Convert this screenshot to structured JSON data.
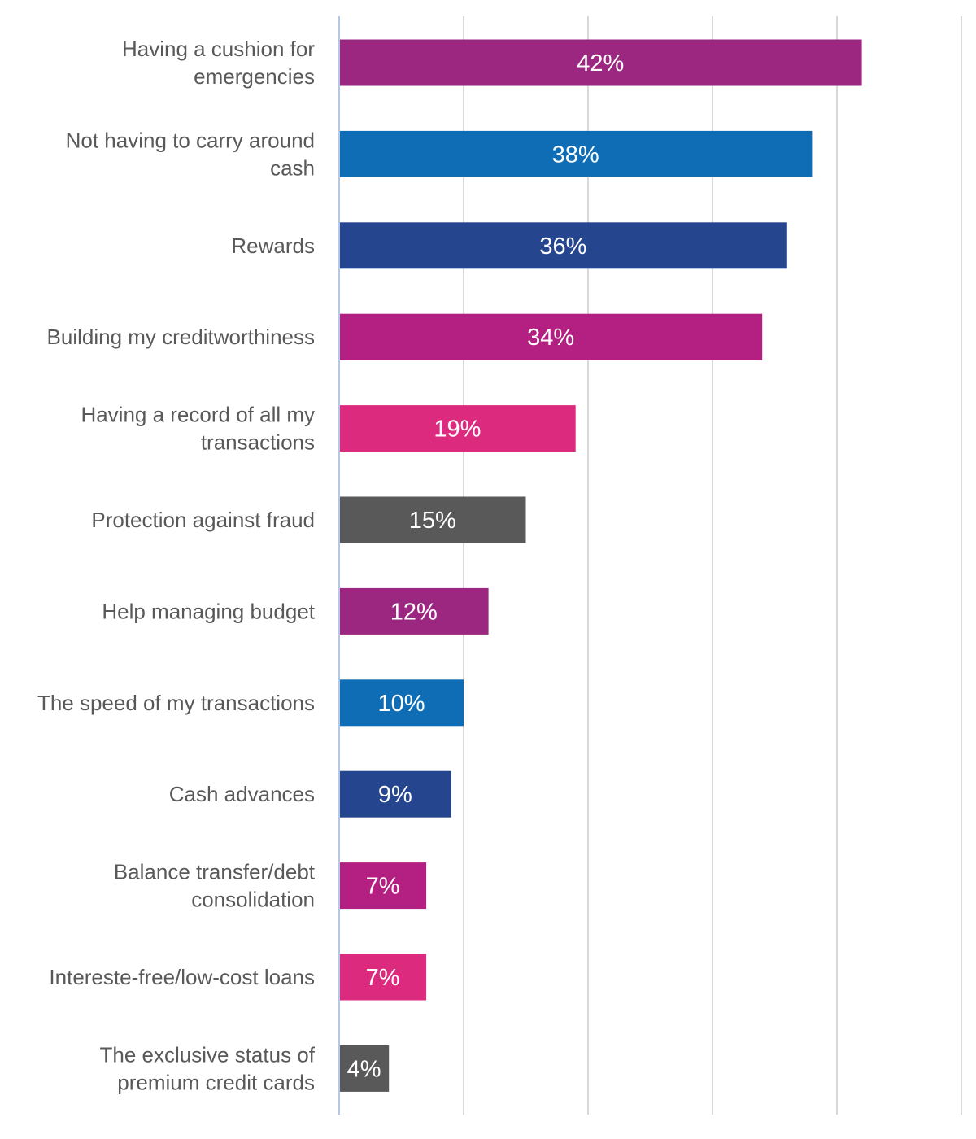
{
  "chart_data": {
    "type": "bar",
    "orientation": "horizontal",
    "categories": [
      [
        "Having a cushion for",
        "emergencies"
      ],
      [
        "Not having to carry around",
        "cash"
      ],
      [
        "Rewards"
      ],
      [
        "Building my creditworthiness"
      ],
      [
        "Having a record of all my",
        "transactions"
      ],
      [
        "Protection against fraud"
      ],
      [
        "Help managing budget"
      ],
      [
        "The speed of my transactions"
      ],
      [
        "Cash advances"
      ],
      [
        "Balance transfer/debt",
        "consolidation"
      ],
      [
        "Intereste-free/low-cost loans"
      ],
      [
        "The exclusive status of",
        "premium credit cards"
      ]
    ],
    "values": [
      42,
      38,
      36,
      34,
      19,
      15,
      12,
      10,
      9,
      7,
      7,
      4
    ],
    "value_labels": [
      "42%",
      "38%",
      "36%",
      "34%",
      "19%",
      "15%",
      "12%",
      "10%",
      "9%",
      "7%",
      "7%",
      "4%"
    ],
    "bar_colors": [
      "#9b2780",
      "#0f6db5",
      "#25468f",
      "#b42081",
      "#dc2b7f",
      "#595959",
      "#9b2780",
      "#0f6db5",
      "#25468f",
      "#b42081",
      "#dc2b7f",
      "#595959"
    ],
    "xlim": [
      0,
      50
    ],
    "x_gridlines": [
      10,
      20,
      30,
      40,
      50
    ],
    "grid": true,
    "x_tick_labels_shown": false,
    "title": "",
    "xlabel": "",
    "ylabel": ""
  }
}
